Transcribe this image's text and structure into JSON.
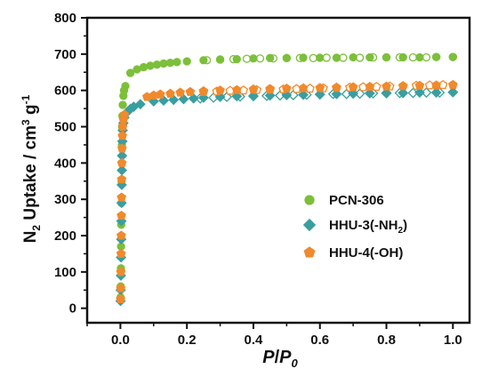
{
  "chart_data": {
    "type": "scatter",
    "xlim": [
      -0.1,
      1.05
    ],
    "ylim": [
      -40,
      800
    ],
    "x_ticks": [
      0.0,
      0.2,
      0.4,
      0.6,
      0.8,
      1.0
    ],
    "x_tick_labels": [
      "0.0",
      "0.2",
      "0.4",
      "0.6",
      "0.8",
      "1.0"
    ],
    "y_ticks": [
      0,
      100,
      200,
      300,
      400,
      500,
      600,
      700,
      800
    ],
    "y_tick_labels": [
      "0",
      "100",
      "200",
      "300",
      "400",
      "500",
      "600",
      "700",
      "800"
    ],
    "xlabel": {
      "main": "P/",
      "italic_P": "P",
      "sub": "0"
    },
    "ylabel": {
      "n": "N",
      "n_sub": "2",
      "main": " Uptake / cm",
      "sup3": "3",
      "g": " g",
      "sup_minus1": "-1"
    },
    "legend_position": "center-right",
    "series": [
      {
        "name": "PCN-306",
        "color": "#7cbf3a",
        "marker": "circle",
        "adsorption": [
          [
            0.0005,
            30
          ],
          [
            0.001,
            60
          ],
          [
            0.0015,
            110
          ],
          [
            0.002,
            170
          ],
          [
            0.0025,
            230
          ],
          [
            0.003,
            290
          ],
          [
            0.0035,
            350
          ],
          [
            0.004,
            400
          ],
          [
            0.0045,
            450
          ],
          [
            0.005,
            500
          ],
          [
            0.006,
            530
          ],
          [
            0.007,
            560
          ],
          [
            0.009,
            585
          ],
          [
            0.011,
            600
          ],
          [
            0.015,
            612
          ],
          [
            0.03,
            648
          ],
          [
            0.05,
            658
          ],
          [
            0.07,
            664
          ],
          [
            0.09,
            668
          ],
          [
            0.11,
            671
          ],
          [
            0.13,
            674
          ],
          [
            0.15,
            676
          ],
          [
            0.17,
            678
          ],
          [
            0.2,
            680
          ],
          [
            0.25,
            683
          ],
          [
            0.3,
            685
          ],
          [
            0.35,
            686
          ],
          [
            0.4,
            688
          ],
          [
            0.45,
            689
          ],
          [
            0.5,
            689
          ],
          [
            0.55,
            690
          ],
          [
            0.6,
            690
          ],
          [
            0.65,
            690
          ],
          [
            0.7,
            691
          ],
          [
            0.75,
            691
          ],
          [
            0.8,
            691
          ],
          [
            0.85,
            691
          ],
          [
            0.9,
            691
          ],
          [
            0.95,
            692
          ],
          [
            1.0,
            692
          ]
        ],
        "desorption": [
          [
            1.0,
            692
          ],
          [
            0.95,
            692
          ],
          [
            0.92,
            691
          ],
          [
            0.88,
            691
          ],
          [
            0.84,
            691
          ],
          [
            0.8,
            691
          ],
          [
            0.76,
            691
          ],
          [
            0.72,
            690
          ],
          [
            0.67,
            690
          ],
          [
            0.62,
            690
          ],
          [
            0.58,
            689
          ],
          [
            0.54,
            689
          ],
          [
            0.5,
            689
          ],
          [
            0.46,
            688
          ],
          [
            0.42,
            688
          ],
          [
            0.38,
            687
          ],
          [
            0.34,
            686
          ],
          [
            0.3,
            685
          ],
          [
            0.26,
            683
          ]
        ]
      },
      {
        "name": "HHU-3(-NH2)",
        "label_main": "HHU-3(-NH",
        "label_sub": "2",
        "label_tail": ")",
        "color": "#3a9ea0",
        "marker": "diamond",
        "adsorption": [
          [
            0.0005,
            20
          ],
          [
            0.001,
            50
          ],
          [
            0.0015,
            90
          ],
          [
            0.002,
            140
          ],
          [
            0.0025,
            190
          ],
          [
            0.003,
            240
          ],
          [
            0.0035,
            290
          ],
          [
            0.004,
            340
          ],
          [
            0.0045,
            380
          ],
          [
            0.005,
            420
          ],
          [
            0.006,
            460
          ],
          [
            0.007,
            490
          ],
          [
            0.009,
            510
          ],
          [
            0.012,
            525
          ],
          [
            0.02,
            540
          ],
          [
            0.03,
            549
          ],
          [
            0.04,
            555
          ],
          [
            0.06,
            562
          ],
          [
            0.1,
            570
          ],
          [
            0.13,
            572
          ],
          [
            0.16,
            574
          ],
          [
            0.19,
            576
          ],
          [
            0.22,
            578
          ],
          [
            0.25,
            580
          ],
          [
            0.3,
            582
          ],
          [
            0.35,
            584
          ],
          [
            0.4,
            585
          ],
          [
            0.45,
            586
          ],
          [
            0.5,
            587
          ],
          [
            0.55,
            588
          ],
          [
            0.6,
            589
          ],
          [
            0.65,
            590
          ],
          [
            0.7,
            591
          ],
          [
            0.75,
            592
          ],
          [
            0.8,
            593
          ],
          [
            0.85,
            593
          ],
          [
            0.9,
            594
          ],
          [
            0.95,
            594
          ],
          [
            1.0,
            595
          ]
        ],
        "desorption": [
          [
            1.0,
            595
          ],
          [
            0.96,
            594
          ],
          [
            0.92,
            594
          ],
          [
            0.88,
            593
          ],
          [
            0.84,
            593
          ],
          [
            0.8,
            592
          ],
          [
            0.76,
            592
          ],
          [
            0.72,
            591
          ],
          [
            0.68,
            590
          ],
          [
            0.64,
            590
          ],
          [
            0.6,
            589
          ],
          [
            0.56,
            588
          ],
          [
            0.52,
            587
          ],
          [
            0.48,
            586
          ],
          [
            0.44,
            585
          ],
          [
            0.4,
            584
          ],
          [
            0.36,
            583
          ],
          [
            0.32,
            582
          ],
          [
            0.28,
            580
          ],
          [
            0.24,
            578
          ]
        ]
      },
      {
        "name": "HHU-4(-OH)",
        "color": "#f08a2c",
        "marker": "pentagon",
        "adsorption": [
          [
            0.0005,
            25
          ],
          [
            0.001,
            55
          ],
          [
            0.0015,
            100
          ],
          [
            0.002,
            150
          ],
          [
            0.0025,
            200
          ],
          [
            0.003,
            255
          ],
          [
            0.0035,
            305
          ],
          [
            0.004,
            355
          ],
          [
            0.0045,
            400
          ],
          [
            0.005,
            440
          ],
          [
            0.006,
            475
          ],
          [
            0.007,
            500
          ],
          [
            0.009,
            520
          ],
          [
            0.012,
            533
          ],
          [
            0.08,
            582
          ],
          [
            0.1,
            586
          ],
          [
            0.12,
            589
          ],
          [
            0.15,
            591
          ],
          [
            0.18,
            594
          ],
          [
            0.21,
            596
          ],
          [
            0.25,
            598
          ],
          [
            0.3,
            600
          ],
          [
            0.35,
            601
          ],
          [
            0.4,
            603
          ],
          [
            0.45,
            604
          ],
          [
            0.5,
            605
          ],
          [
            0.55,
            606
          ],
          [
            0.6,
            607
          ],
          [
            0.65,
            608
          ],
          [
            0.7,
            609
          ],
          [
            0.75,
            610
          ],
          [
            0.8,
            611
          ],
          [
            0.85,
            612
          ],
          [
            0.9,
            613
          ],
          [
            0.95,
            614
          ],
          [
            1.0,
            615
          ]
        ],
        "desorption": [
          [
            1.0,
            615
          ],
          [
            0.97,
            615
          ],
          [
            0.93,
            614
          ],
          [
            0.89,
            613
          ],
          [
            0.85,
            612
          ],
          [
            0.81,
            611
          ],
          [
            0.77,
            610
          ],
          [
            0.73,
            609
          ],
          [
            0.69,
            608
          ],
          [
            0.65,
            607
          ],
          [
            0.61,
            606
          ],
          [
            0.57,
            605
          ],
          [
            0.53,
            604
          ],
          [
            0.49,
            603
          ],
          [
            0.45,
            602
          ],
          [
            0.41,
            601
          ],
          [
            0.37,
            600
          ],
          [
            0.33,
            599
          ],
          [
            0.29,
            597
          ],
          [
            0.25,
            596
          ]
        ]
      }
    ]
  }
}
